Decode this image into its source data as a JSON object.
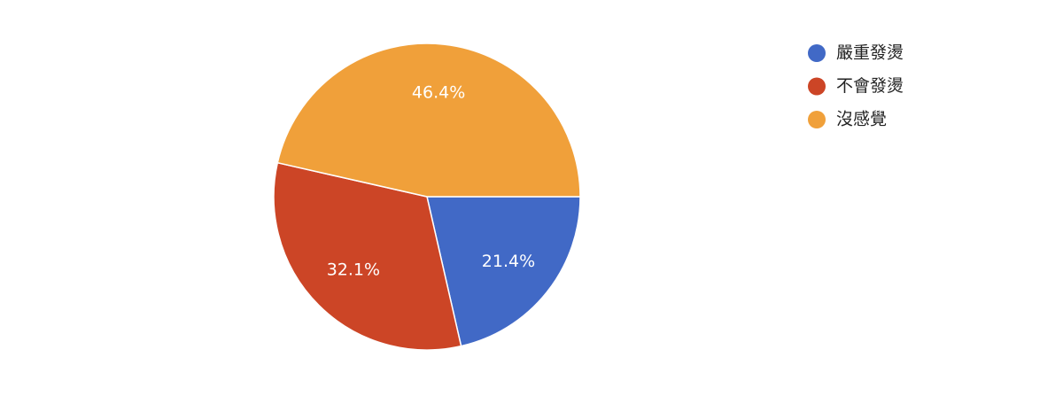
{
  "chart_data": {
    "type": "pie",
    "categories": [
      "嚴重發燙",
      "不會發燙",
      "沒感覺"
    ],
    "values": [
      21.4,
      32.1,
      46.4
    ],
    "value_labels": [
      "21.4%",
      "32.1%",
      "46.4%"
    ],
    "colors": [
      "#4169c6",
      "#cc4526",
      "#f0a03a"
    ],
    "legend": "right"
  }
}
